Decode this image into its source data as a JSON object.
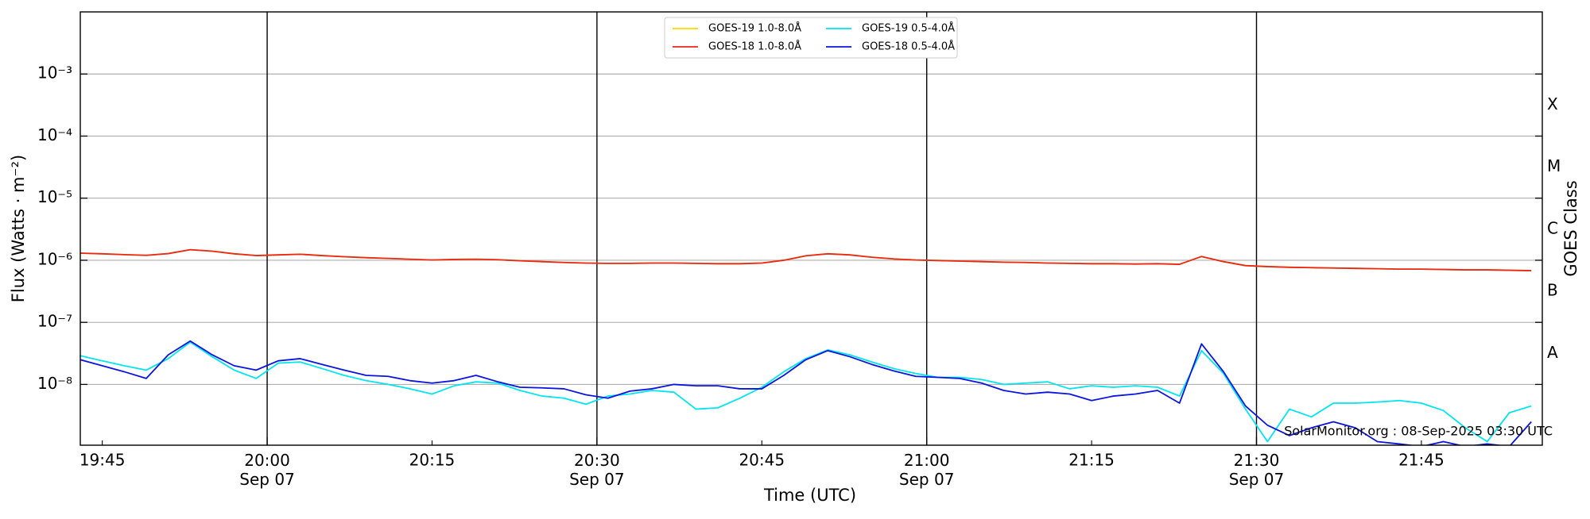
{
  "chart_data": {
    "type": "line",
    "xlabel": "Time (UTC)",
    "ylabel": "Flux (Watts · m⁻²)",
    "y2label": "GOES Class",
    "annotation": "SolarMonitor.org : 08-Sep-2025 03:30 UTC",
    "yscale": "log",
    "grid": true,
    "xgrid": "major",
    "legend": "upper center",
    "xlim": [
      "19:43",
      "21:56"
    ],
    "ylim": [
      1.05e-09,
      0.01
    ],
    "yticks": [
      {
        "value": 1e-08,
        "label": "10⁻⁸"
      },
      {
        "value": 1e-07,
        "label": "10⁻⁷"
      },
      {
        "value": 1e-06,
        "label": "10⁻⁶"
      },
      {
        "value": 1e-05,
        "label": "10⁻⁵"
      },
      {
        "value": 0.0001,
        "label": "10⁻⁴"
      },
      {
        "value": 0.001,
        "label": "10⁻³"
      }
    ],
    "y2lim": [
      1.05e-09,
      0.01
    ],
    "y2ticks": [
      {
        "value": 3.16e-08,
        "label": "A"
      },
      {
        "value": 3.16e-07,
        "label": "B"
      },
      {
        "value": 3.16e-06,
        "label": "C"
      },
      {
        "value": 3.16e-05,
        "label": "M"
      },
      {
        "value": 0.000316,
        "label": "X"
      }
    ],
    "xticks": [
      {
        "value": "20:00",
        "label": [
          "20:00",
          "Sep 07"
        ]
      },
      {
        "value": "20:30",
        "label": [
          "20:30",
          "Sep 07"
        ]
      },
      {
        "value": "21:00",
        "label": [
          "21:00",
          "Sep 07"
        ]
      },
      {
        "value": "21:30",
        "label": [
          "21:30",
          "Sep 07"
        ]
      }
    ],
    "xminorticks": [
      "19:45",
      "20:15",
      "20:45",
      "21:15",
      "21:45"
    ],
    "x": [
      "19:43",
      "19:45",
      "19:47",
      "19:49",
      "19:51",
      "19:53",
      "19:55",
      "19:57",
      "19:59",
      "20:01",
      "20:03",
      "20:05",
      "20:07",
      "20:09",
      "20:11",
      "20:13",
      "20:15",
      "20:17",
      "20:19",
      "20:21",
      "20:23",
      "20:25",
      "20:27",
      "20:29",
      "20:31",
      "20:33",
      "20:35",
      "20:37",
      "20:39",
      "20:41",
      "20:43",
      "20:45",
      "20:47",
      "20:49",
      "20:51",
      "20:53",
      "20:55",
      "20:57",
      "20:59",
      "21:01",
      "21:03",
      "21:05",
      "21:07",
      "21:09",
      "21:11",
      "21:13",
      "21:15",
      "21:17",
      "21:19",
      "21:21",
      "21:23",
      "21:25",
      "21:27",
      "21:29",
      "21:31",
      "21:33",
      "21:35",
      "21:37",
      "21:39",
      "21:41",
      "21:43",
      "21:45",
      "21:47",
      "21:49",
      "21:51",
      "21:53",
      "21:55"
    ],
    "series": [
      {
        "name": "GOES-19 1.0-8.0Å",
        "color": "#ffd700",
        "values": [
          1.3e-06,
          1.27e-06,
          1.23e-06,
          1.2e-06,
          1.28e-06,
          1.48e-06,
          1.4e-06,
          1.27e-06,
          1.19e-06,
          1.22e-06,
          1.25e-06,
          1.19e-06,
          1.14e-06,
          1.1e-06,
          1.07e-06,
          1.04e-06,
          1.01e-06,
          1.03e-06,
          1.04e-06,
          1.02e-06,
          9.8e-07,
          9.5e-07,
          9.2e-07,
          9e-07,
          8.9e-07,
          8.9e-07,
          9e-07,
          9e-07,
          8.9e-07,
          8.8e-07,
          8.8e-07,
          9e-07,
          1e-06,
          1.18e-06,
          1.27e-06,
          1.22e-06,
          1.12e-06,
          1.05e-06,
          1.01e-06,
          9.9e-07,
          9.7e-07,
          9.5e-07,
          9.3e-07,
          9.2e-07,
          9e-07,
          8.9e-07,
          8.8e-07,
          8.8e-07,
          8.7e-07,
          8.8e-07,
          8.6e-07,
          1.15e-06,
          9.5e-07,
          8.2e-07,
          7.9e-07,
          7.7e-07,
          7.6e-07,
          7.5e-07,
          7.4e-07,
          7.3e-07,
          7.2e-07,
          7.2e-07,
          7.1e-07,
          7e-07,
          7e-07,
          6.9e-07,
          6.8e-07
        ]
      },
      {
        "name": "GOES-18 1.0-8.0Å",
        "color": "#e8281a",
        "values": [
          1.3e-06,
          1.27e-06,
          1.23e-06,
          1.2e-06,
          1.28e-06,
          1.48e-06,
          1.4e-06,
          1.27e-06,
          1.19e-06,
          1.22e-06,
          1.25e-06,
          1.19e-06,
          1.14e-06,
          1.1e-06,
          1.07e-06,
          1.04e-06,
          1.01e-06,
          1.03e-06,
          1.04e-06,
          1.02e-06,
          9.8e-07,
          9.5e-07,
          9.2e-07,
          9e-07,
          8.9e-07,
          8.9e-07,
          9e-07,
          9e-07,
          8.9e-07,
          8.8e-07,
          8.8e-07,
          9e-07,
          1e-06,
          1.18e-06,
          1.27e-06,
          1.22e-06,
          1.12e-06,
          1.05e-06,
          1.01e-06,
          9.9e-07,
          9.7e-07,
          9.5e-07,
          9.3e-07,
          9.2e-07,
          9e-07,
          8.9e-07,
          8.8e-07,
          8.8e-07,
          8.7e-07,
          8.8e-07,
          8.6e-07,
          1.15e-06,
          9.5e-07,
          8.2e-07,
          7.9e-07,
          7.7e-07,
          7.6e-07,
          7.5e-07,
          7.4e-07,
          7.3e-07,
          7.2e-07,
          7.2e-07,
          7.1e-07,
          7e-07,
          7e-07,
          6.9e-07,
          6.8e-07
        ]
      },
      {
        "name": "GOES-19 0.5-4.0Å",
        "color": "#00e5f0",
        "values": [
          2.9e-08,
          2.4e-08,
          2e-08,
          1.7e-08,
          2.6e-08,
          4.8e-08,
          2.8e-08,
          1.7e-08,
          1.25e-08,
          2.2e-08,
          2.3e-08,
          1.8e-08,
          1.4e-08,
          1.15e-08,
          1e-08,
          8.5e-09,
          7e-09,
          9.5e-09,
          1.1e-08,
          1.05e-08,
          8e-09,
          6.5e-09,
          6e-09,
          4.8e-09,
          6.5e-09,
          7e-09,
          8e-09,
          7.5e-09,
          4e-09,
          4.2e-09,
          6e-09,
          9e-09,
          1.6e-08,
          2.6e-08,
          3.6e-08,
          3e-08,
          2.3e-08,
          1.8e-08,
          1.5e-08,
          1.3e-08,
          1.3e-08,
          1.2e-08,
          1e-08,
          1.05e-08,
          1.1e-08,
          8.5e-09,
          9.5e-09,
          9e-09,
          9.5e-09,
          9e-09,
          6.5e-09,
          3.5e-08,
          1.5e-08,
          4e-09,
          1.2e-09,
          4e-09,
          3e-09,
          5e-09,
          5e-09,
          5.2e-09,
          5.5e-09,
          5e-09,
          3.8e-09,
          2e-09,
          1.2e-09,
          3.5e-09,
          4.5e-09
        ]
      },
      {
        "name": "GOES-18 0.5-4.0Å",
        "color": "#0a14e0",
        "values": [
          2.5e-08,
          2e-08,
          1.6e-08,
          1.25e-08,
          3e-08,
          5e-08,
          3e-08,
          2e-08,
          1.7e-08,
          2.4e-08,
          2.6e-08,
          2.1e-08,
          1.7e-08,
          1.4e-08,
          1.35e-08,
          1.15e-08,
          1.05e-08,
          1.15e-08,
          1.4e-08,
          1.1e-08,
          9e-09,
          8.8e-09,
          8.5e-09,
          6.8e-09,
          6e-09,
          7.8e-09,
          8.5e-09,
          1e-08,
          9.5e-09,
          9.5e-09,
          8.5e-09,
          8.5e-09,
          1.4e-08,
          2.5e-08,
          3.5e-08,
          2.8e-08,
          2.1e-08,
          1.65e-08,
          1.35e-08,
          1.3e-08,
          1.25e-08,
          1.05e-08,
          8e-09,
          7e-09,
          7.5e-09,
          7e-09,
          5.5e-09,
          6.5e-09,
          7e-09,
          8e-09,
          5e-09,
          4.5e-08,
          1.6e-08,
          4.5e-09,
          2.2e-09,
          1.5e-09,
          2e-09,
          2.5e-09,
          2e-09,
          1.2e-09,
          1.1e-09,
          1e-09,
          1.2e-09,
          1e-09,
          1.1e-09,
          1e-09,
          2.5e-09
        ]
      }
    ]
  }
}
